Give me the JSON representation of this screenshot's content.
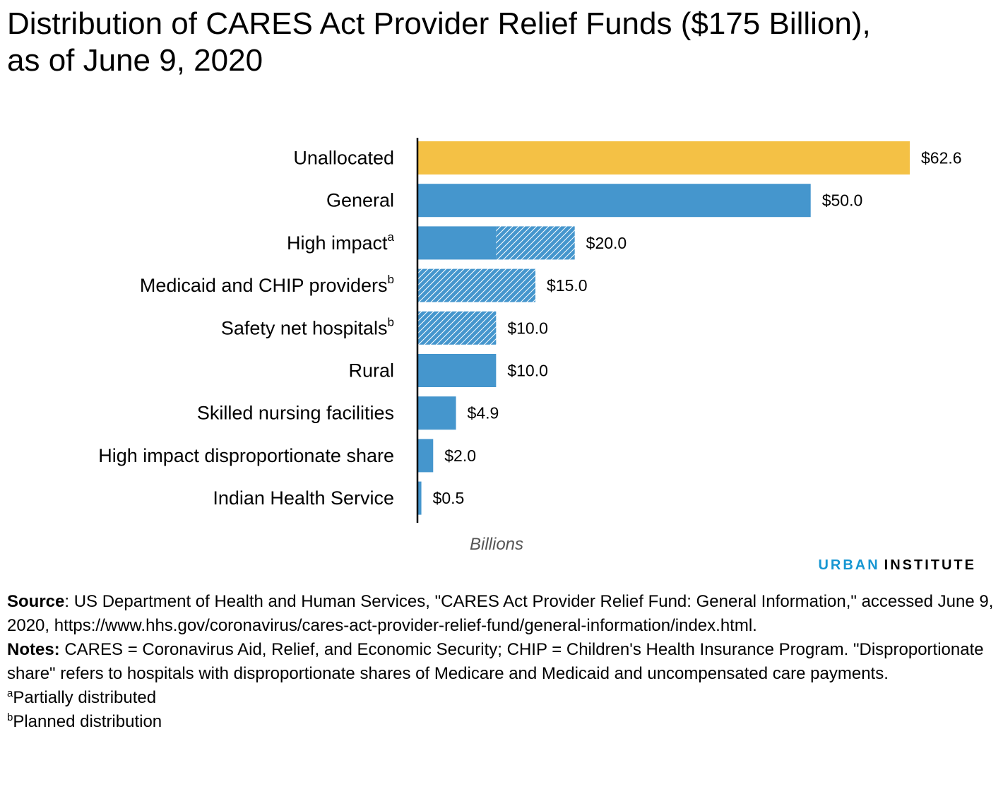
{
  "title_line1": "Distribution of CARES Act Provider Relief Funds ($175 Billion),",
  "title_line2": "as of June 9, 2020",
  "brand": {
    "part1": "URBAN",
    "part2": "INSTITUTE"
  },
  "colors": {
    "unallocated": "#f4c145",
    "bar": "#4596cd",
    "hatch_line": "#ffffff",
    "axis": "#000000"
  },
  "chart_data": {
    "type": "bar",
    "orientation": "horizontal",
    "xlabel": "Billions",
    "categories": [
      "Unallocated",
      "General",
      "High impact",
      "Medicaid and CHIP providers",
      "Safety net hospitals",
      "Rural",
      "Skilled nursing facilities",
      "High impact disproportionate share",
      "Indian Health Service"
    ],
    "category_superscripts": [
      "",
      "",
      "a",
      "b",
      "b",
      "",
      "",
      "",
      ""
    ],
    "values": [
      62.6,
      50.0,
      20.0,
      15.0,
      10.0,
      10.0,
      4.9,
      2.0,
      0.5
    ],
    "solid_portion": [
      62.6,
      50.0,
      10.0,
      0,
      0,
      10.0,
      4.9,
      2.0,
      0.5
    ],
    "value_labels": [
      "$62.6",
      "$50.0",
      "$20.0",
      "$15.0",
      "$10.0",
      "$10.0",
      "$4.9",
      "$2.0",
      "$0.5"
    ],
    "xlim": [
      0,
      70
    ],
    "grid": false
  },
  "notes": {
    "source_label": "Source",
    "source_text": ": US Department of Health and Human Services, \"CARES Act Provider Relief Fund: General Information,\" accessed June 9, 2020, https://www.hhs.gov/coronavirus/cares-act-provider-relief-fund/general-information/index.html.",
    "notes_label": "Notes:",
    "notes_text": " CARES = Coronavirus Aid, Relief, and Economic Security; CHIP = Children's Health Insurance Program. \"Disproportionate share\" refers to hospitals with disproportionate shares of Medicare and Medicaid and uncompensated care payments.",
    "footnote_a_mark": "a",
    "footnote_a_text": "Partially distributed",
    "footnote_b_mark": "b",
    "footnote_b_text": "Planned distribution"
  }
}
